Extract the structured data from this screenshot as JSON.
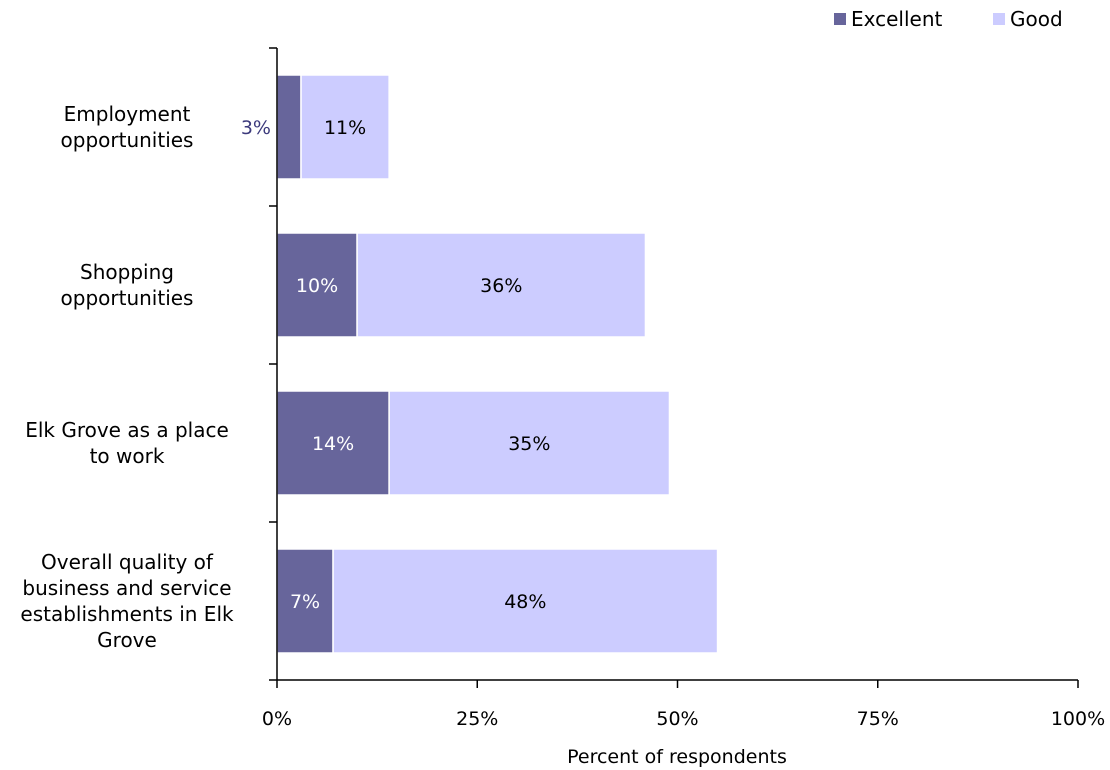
{
  "chart_data": {
    "type": "bar",
    "orientation": "horizontal",
    "stacked": true,
    "categories": [
      "Employment opportunities",
      "Shopping opportunities",
      "Elk Grove as a place to work",
      "Overall quality of business and service establishments in Elk Grove"
    ],
    "category_lines": [
      [
        "Employment",
        "opportunities"
      ],
      [
        "Shopping",
        "opportunities"
      ],
      [
        "Elk Grove as a place",
        "to work"
      ],
      [
        "Overall quality of",
        "business and service",
        "establishments in Elk",
        "Grove"
      ]
    ],
    "series": [
      {
        "name": "Excellent",
        "color": "#67659b",
        "label_color": "#ffffff",
        "values": [
          3,
          10,
          14,
          7
        ],
        "labels": [
          "3%",
          "10%",
          "14%",
          "7%"
        ]
      },
      {
        "name": "Good",
        "color": "#ccccff",
        "label_color": "#000000",
        "values": [
          11,
          36,
          35,
          48
        ],
        "labels": [
          "11%",
          "36%",
          "35%",
          "48%"
        ]
      }
    ],
    "outside_label_color": "#3c3a7c",
    "xlim": [
      0,
      100
    ],
    "xticks": [
      0,
      25,
      50,
      75,
      100
    ],
    "xtick_labels": [
      "0%",
      "25%",
      "50%",
      "75%",
      "100%"
    ],
    "xlabel": "Percent of respondents",
    "legend_position": "top-right",
    "grid": false
  }
}
